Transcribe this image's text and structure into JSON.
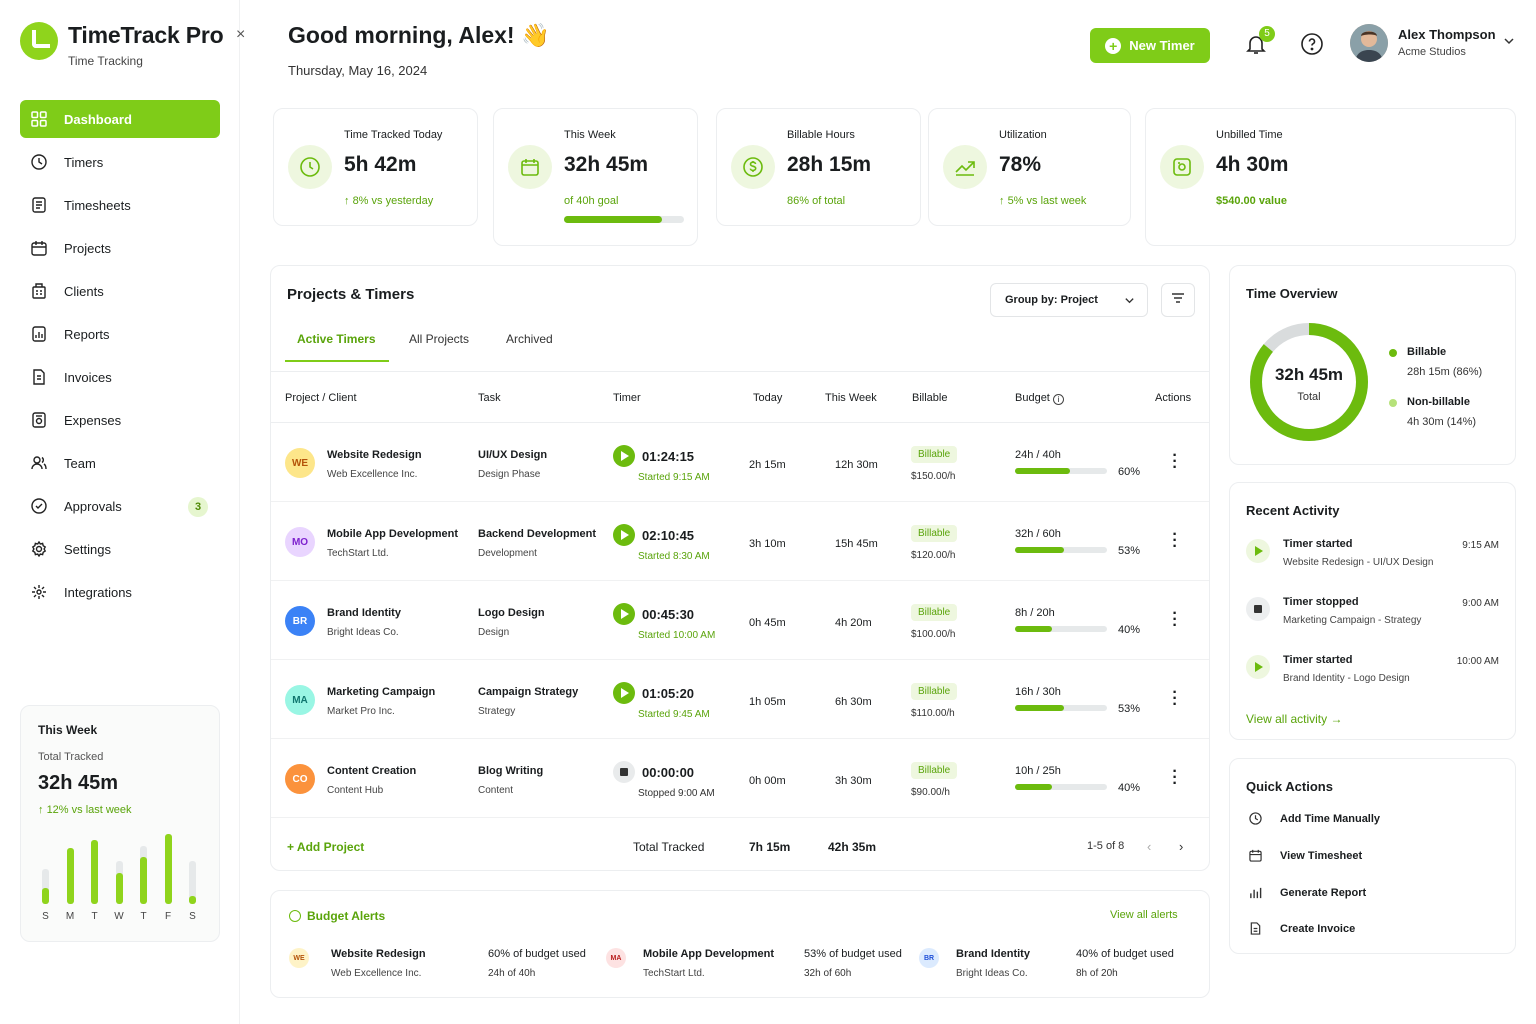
{
  "app": {
    "title": "TimeTrack Pro",
    "subtitle": "Time Tracking",
    "collapse_icon": "×"
  },
  "header": {
    "greeting": "Good morning, Alex! 👋",
    "date": "Thursday, May 16, 2024",
    "new_timer_label": "New Timer",
    "notifications_count": "5",
    "user_name": "Alex Thompson",
    "user_org": "Acme Studios"
  },
  "colors": {
    "accent": "#7fcc18",
    "accent_dark": "#5aa40b",
    "tint": "#eef7df"
  },
  "sidebar": {
    "items": [
      {
        "label": "Dashboard",
        "icon": "grid-icon",
        "active": true
      },
      {
        "label": "Timers",
        "icon": "clock-icon"
      },
      {
        "label": "Timesheets",
        "icon": "document-icon"
      },
      {
        "label": "Projects",
        "icon": "calendar-icon"
      },
      {
        "label": "Clients",
        "icon": "building-icon"
      },
      {
        "label": "Reports",
        "icon": "report-icon"
      },
      {
        "label": "Invoices",
        "icon": "invoice-icon"
      },
      {
        "label": "Expenses",
        "icon": "receipt-icon"
      },
      {
        "label": "Team",
        "icon": "users-icon"
      },
      {
        "label": "Approvals",
        "icon": "check-circle-icon",
        "badge": "3"
      },
      {
        "label": "Settings",
        "icon": "gear-icon"
      },
      {
        "label": "Integrations",
        "icon": "puzzle-icon"
      }
    ],
    "week_card": {
      "title": "This Week",
      "sub": "Total Tracked",
      "value": "32h 45m",
      "trend": "12% vs last week",
      "days": [
        "S",
        "M",
        "T",
        "W",
        "T",
        "F",
        "S"
      ],
      "bar_levels": [
        0.45,
        0.72,
        0.82,
        0.55,
        0.75,
        0.9,
        0.55
      ],
      "bar_fills": [
        0.2,
        0.72,
        0.82,
        0.4,
        0.6,
        0.9,
        0.1
      ]
    }
  },
  "stats": [
    {
      "label": "Time Tracked Today",
      "value": "5h 42m",
      "note": "8% vs yesterday",
      "icon": "clock-icon"
    },
    {
      "label": "This Week",
      "value": "32h 45m",
      "note": "of 40h goal",
      "progress": 0.82,
      "icon": "calendar-icon"
    },
    {
      "label": "Billable Hours",
      "value": "28h 15m",
      "note": "86% of total",
      "icon": "dollar-icon"
    },
    {
      "label": "Utilization",
      "value": "78%",
      "note": "5% vs last week",
      "icon": "trend-icon"
    },
    {
      "label": "Unbilled Time",
      "value": "4h 30m",
      "note": "$540.00 value",
      "icon": "wallet-icon"
    }
  ],
  "projects": {
    "title": "Projects & Timers",
    "group_by": "Group by: Project",
    "tabs": [
      "Active Timers",
      "All Projects",
      "Archived"
    ],
    "columns": [
      "Project / Client",
      "Task",
      "Timer",
      "Today",
      "This Week",
      "Billable",
      "Budget",
      "Actions"
    ],
    "rows": [
      {
        "initials": "WE",
        "av_bg": "#fde68a",
        "av_fg": "#b45309",
        "name": "Website Redesign",
        "client": "Web Excellence Inc.",
        "task": "UI/UX Design",
        "phase": "Design Phase",
        "timer": "01:24:15",
        "timer_note": "Started 9:15 AM",
        "running": true,
        "today": "2h 15m",
        "week": "12h 30m",
        "billable": "Billable",
        "rate": "$150.00/h",
        "budget": "24h / 40h",
        "pct": "60%",
        "frac": 0.6
      },
      {
        "initials": "MO",
        "av_bg": "#e9d5ff",
        "av_fg": "#7e22ce",
        "name": "Mobile App Development",
        "client": "TechStart Ltd.",
        "task": "Backend Development",
        "phase": "Development",
        "timer": "02:10:45",
        "timer_note": "Started 8:30 AM",
        "running": true,
        "today": "3h 10m",
        "week": "15h 45m",
        "billable": "Billable",
        "rate": "$120.00/h",
        "budget": "32h / 60h",
        "pct": "53%",
        "frac": 0.53
      },
      {
        "initials": "BR",
        "av_bg": "#3b82f6",
        "av_fg": "#ffffff",
        "name": "Brand Identity",
        "client": "Bright Ideas Co.",
        "task": "Logo Design",
        "phase": "Design",
        "timer": "00:45:30",
        "timer_note": "Started 10:00 AM",
        "running": true,
        "today": "0h 45m",
        "week": "4h 20m",
        "billable": "Billable",
        "rate": "$100.00/h",
        "budget": "8h / 20h",
        "pct": "40%",
        "frac": 0.4
      },
      {
        "initials": "MA",
        "av_bg": "#99f6e4",
        "av_fg": "#0f766e",
        "name": "Marketing Campaign",
        "client": "Market Pro Inc.",
        "task": "Campaign Strategy",
        "phase": "Strategy",
        "timer": "01:05:20",
        "timer_note": "Started 9:45 AM",
        "running": true,
        "today": "1h 05m",
        "week": "6h 30m",
        "billable": "Billable",
        "rate": "$110.00/h",
        "budget": "16h / 30h",
        "pct": "53%",
        "frac": 0.53
      },
      {
        "initials": "CO",
        "av_bg": "#fb923c",
        "av_fg": "#ffffff",
        "name": "Content Creation",
        "client": "Content Hub",
        "task": "Blog Writing",
        "phase": "Content",
        "timer": "00:00:00",
        "timer_note": "Stopped 9:00 AM",
        "running": false,
        "today": "0h 00m",
        "week": "3h 30m",
        "billable": "Billable",
        "rate": "$90.00/h",
        "budget": "10h / 25h",
        "pct": "40%",
        "frac": 0.4
      }
    ],
    "footer": {
      "add_label": "Add Project",
      "total_label": "Total Tracked",
      "total_today": "7h 15m",
      "total_week": "42h 35m",
      "pager": "1-5 of 8"
    }
  },
  "alerts": {
    "title": "Budget Alerts",
    "view_all": "View all alerts",
    "items": [
      {
        "initials": "WE",
        "av_bg": "#fef3c7",
        "av_fg": "#b45309",
        "name": "Website Redesign",
        "client": "Web Excellence Inc.",
        "used": "60% of budget used",
        "hours": "24h of 40h"
      },
      {
        "initials": "MA",
        "av_bg": "#fde2e2",
        "av_fg": "#b91c1c",
        "name": "Mobile App Development",
        "client": "TechStart Ltd.",
        "used": "53% of budget used",
        "hours": "32h of 60h"
      },
      {
        "initials": "BR",
        "av_bg": "#dbeafe",
        "av_fg": "#1d4ed8",
        "name": "Brand Identity",
        "client": "Bright Ideas Co.",
        "used": "40% of budget used",
        "hours": "8h of 20h"
      }
    ]
  },
  "overview": {
    "title": "Time Overview",
    "total": "32h 45m",
    "total_label": "Total",
    "billable_frac": 0.86,
    "legend": [
      {
        "name": "Billable",
        "value": "28h 15m (86%)",
        "color": "#6cbb0e"
      },
      {
        "name": "Non-billable",
        "value": "4h 30m (14%)",
        "color": "#b6e27a"
      }
    ]
  },
  "activity": {
    "title": "Recent Activity",
    "view_all": "View all activity",
    "items": [
      {
        "title": "Timer started",
        "sub": "Website Redesign - UI/UX Design",
        "time": "9:15 AM",
        "kind": "start"
      },
      {
        "title": "Timer stopped",
        "sub": "Marketing Campaign - Strategy",
        "time": "9:00 AM",
        "kind": "stop"
      },
      {
        "title": "Timer started",
        "sub": "Brand Identity - Logo Design",
        "time": "10:00 AM",
        "kind": "start"
      }
    ]
  },
  "quick_actions": {
    "title": "Quick Actions",
    "items": [
      {
        "label": "Add Time Manually",
        "icon": "clock-icon"
      },
      {
        "label": "View Timesheet",
        "icon": "calendar-icon"
      },
      {
        "label": "Generate Report",
        "icon": "bar-chart-icon"
      },
      {
        "label": "Create Invoice",
        "icon": "invoice-icon"
      }
    ]
  }
}
